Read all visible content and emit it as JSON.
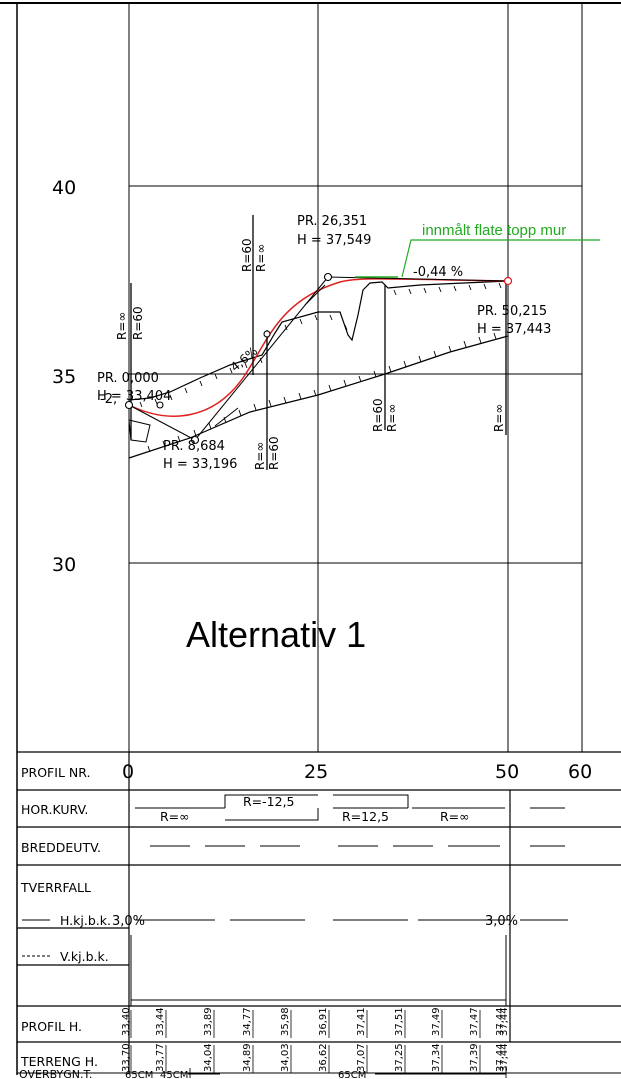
{
  "drawing": {
    "title": "Alternativ 1",
    "y_axis_labels": [
      "40",
      "35",
      "30"
    ],
    "annotation_green": "innmålt flate topp mur",
    "slope_label": "-0,44 %",
    "slope_start": "-2,",
    "points": [
      {
        "pr": "PR. 0,000",
        "h": "H = 33,404"
      },
      {
        "pr": "PR. 8,684",
        "h": "H = 33,196"
      },
      {
        "pr": "PR. 26,351",
        "h": "H = 37,549"
      },
      {
        "pr": "PR. 50,215",
        "h": "H = 37,443"
      }
    ],
    "curve_radii": {
      "r60": "R=60",
      "rinf": "R=∞",
      "rinf_alt": "R=∞",
      "incline": "4,6%"
    }
  },
  "table": {
    "row_labels": {
      "profil_nr": "PROFIL NR.",
      "hor_kurv": "HOR.KURV.",
      "breddeutv": "BREDDEUTV.",
      "tverrfall": "TVERRFALL",
      "hkjbk": "H.kj.b.k.",
      "vkjbk": "V.kj.b.k.",
      "profil_h": "PROFIL H.",
      "terreng_h": "TERRENG H.",
      "overbygn": "OVERBYGN.T."
    },
    "profil_nr_ticks": [
      "0",
      "25",
      "50",
      "60"
    ],
    "hor_kurv": [
      "R=∞",
      "R=-12,5",
      "R=12,5",
      "R=∞"
    ],
    "tverrfall_values": [
      "3,0%",
      "3,0%"
    ],
    "profil_h_values": [
      "33,40",
      "33,44",
      "33,89",
      "34,77",
      "35,98",
      "36,91",
      "37,41",
      "37,51",
      "37,49",
      "37,47",
      "37,44",
      "37,44"
    ],
    "terreng_h_values": [
      "33,70",
      "33,77",
      "34,04",
      "34,89",
      "34,03",
      "36,62",
      "37,07",
      "37,25",
      "37,34",
      "37,39",
      "37,44",
      "37,44"
    ],
    "overbygn_values": [
      "65CM",
      "45CM",
      "65CM"
    ]
  }
}
